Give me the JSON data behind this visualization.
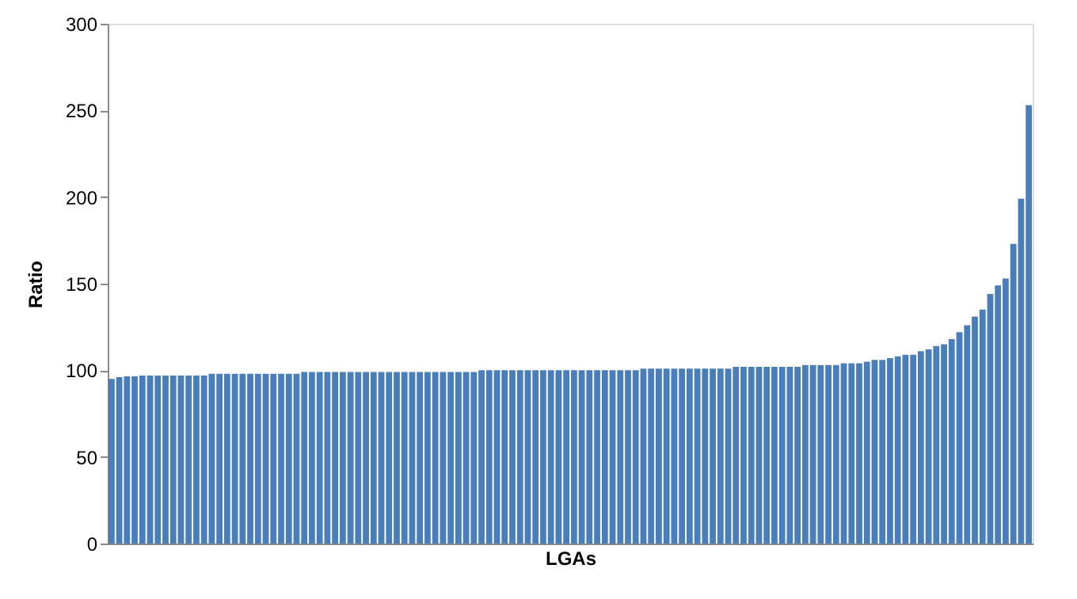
{
  "chart_data": {
    "type": "bar",
    "xlabel": "LGAs",
    "ylabel": "Ratio",
    "color": "#4a7ebb",
    "categories": [
      null,
      null,
      null,
      null,
      null,
      null,
      null,
      null,
      null,
      null,
      null,
      null,
      null,
      null,
      null,
      null,
      null,
      null,
      null,
      null,
      null,
      null,
      null,
      null,
      null,
      null,
      null,
      null,
      null,
      null,
      null,
      null,
      null,
      null,
      null,
      null,
      null,
      null,
      null,
      null,
      null,
      null,
      null,
      null,
      null,
      null,
      null,
      null,
      null,
      null,
      null,
      null,
      null,
      null,
      null,
      null,
      null,
      null,
      null,
      null,
      null,
      null,
      null,
      null,
      null,
      null,
      null,
      null,
      null,
      null,
      null,
      null,
      null,
      null,
      null,
      null,
      null,
      null,
      null,
      null,
      null,
      null,
      null,
      null,
      null,
      null,
      null,
      null,
      null,
      null,
      null,
      null,
      null,
      null,
      null,
      null,
      null,
      null,
      null,
      null,
      null,
      null,
      null,
      null,
      null,
      null,
      null,
      null,
      null,
      null,
      null,
      null,
      null,
      null,
      null,
      null,
      null,
      null,
      null,
      null
    ],
    "values": [
      95,
      96,
      96.5,
      96.5,
      97,
      97,
      97,
      97,
      97,
      97,
      97,
      97,
      97,
      98,
      98,
      98,
      98,
      98,
      98,
      98,
      98,
      98,
      98,
      98,
      98,
      99,
      99,
      99,
      99,
      99,
      99,
      99,
      99,
      99,
      99,
      99,
      99,
      99,
      99,
      99,
      99,
      99,
      99,
      99,
      99,
      99,
      99,
      99,
      100,
      100,
      100,
      100,
      100,
      100,
      100,
      100,
      100,
      100,
      100,
      100,
      100,
      100,
      100,
      100,
      100,
      100,
      100,
      100,
      100,
      101,
      101,
      101,
      101,
      101,
      101,
      101,
      101,
      101,
      101,
      101,
      101,
      102,
      102,
      102,
      102,
      102,
      102,
      102,
      102,
      102,
      103,
      103,
      103,
      103,
      103,
      104,
      104,
      104,
      105,
      106,
      106,
      107,
      108,
      109,
      109,
      111,
      112,
      114,
      115,
      118,
      122,
      126,
      131,
      135,
      144,
      149,
      153,
      173,
      199,
      253
    ],
    "ylim": [
      0,
      300
    ],
    "yticks": [
      0,
      50,
      100,
      150,
      200,
      250,
      300
    ],
    "grid": false,
    "tick_labels": "y"
  }
}
